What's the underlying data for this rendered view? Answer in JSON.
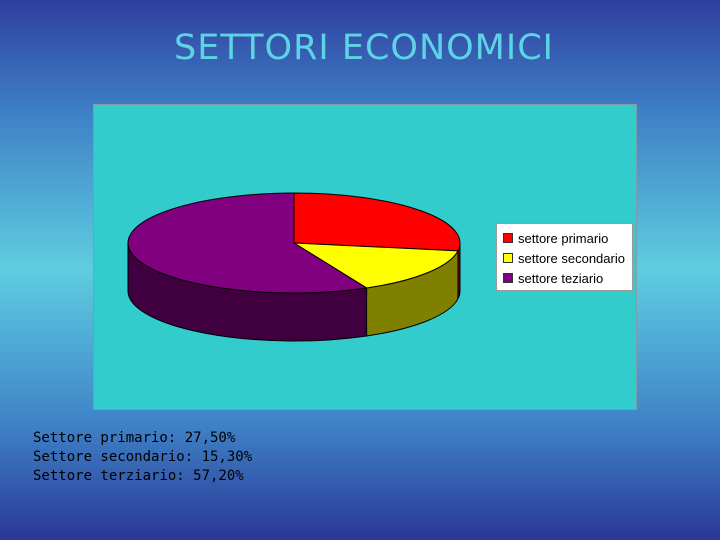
{
  "slide": {
    "title": "SETTORI ECONOMICI",
    "notes": [
      "Settore primario: 27,50%",
      "Settore secondario: 15,30%",
      "Settore terziario: 57,20%"
    ]
  },
  "chart_data": {
    "type": "pie",
    "style": "3d",
    "legend_position": "right",
    "categories": [
      "settore primario",
      "settore secondario",
      "settore teziario"
    ],
    "values": [
      27.5,
      15.3,
      57.2
    ],
    "unit": "%",
    "colors": [
      "#ff0000",
      "#ffff00",
      "#800080"
    ],
    "side_colors": [
      "#800000",
      "#808000",
      "#400040"
    ],
    "background": "#33cccc"
  }
}
